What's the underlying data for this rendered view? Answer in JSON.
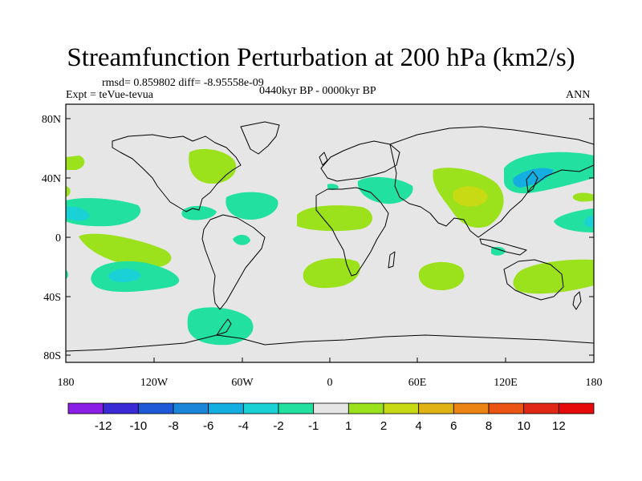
{
  "title": "Streamfunction Perturbation at 200 hPa (km2/s)",
  "rmsd_line": "rmsd= 0.859802 diff= -8.95558e-09",
  "expt_line": "Expt = teVue-tevua",
  "period_line": "0440kyr BP - 0000kyr BP",
  "season_label": "ANN",
  "lat_labels": [
    "80N",
    "40N",
    "0",
    "40S",
    "80S"
  ],
  "lon_labels": [
    "180",
    "120W",
    "60W",
    "0",
    "60E",
    "120E",
    "180"
  ],
  "colorbar": {
    "labels": [
      "-12",
      "-10",
      "-8",
      "-6",
      "-4",
      "-2",
      "-1",
      "1",
      "2",
      "4",
      "6",
      "8",
      "10",
      "12"
    ],
    "colors": [
      "#8a1ee6",
      "#3a2ad6",
      "#1e5ad8",
      "#1a86da",
      "#14aee0",
      "#1ad2d6",
      "#22e0a0",
      "#e6e6e6",
      "#9be11c",
      "#c8da14",
      "#e0b214",
      "#ec8414",
      "#ec5414",
      "#e02814",
      "#e60a0a"
    ]
  },
  "colors": {
    "background_field": "#e6e6e6",
    "land_outline": "#000000"
  }
}
